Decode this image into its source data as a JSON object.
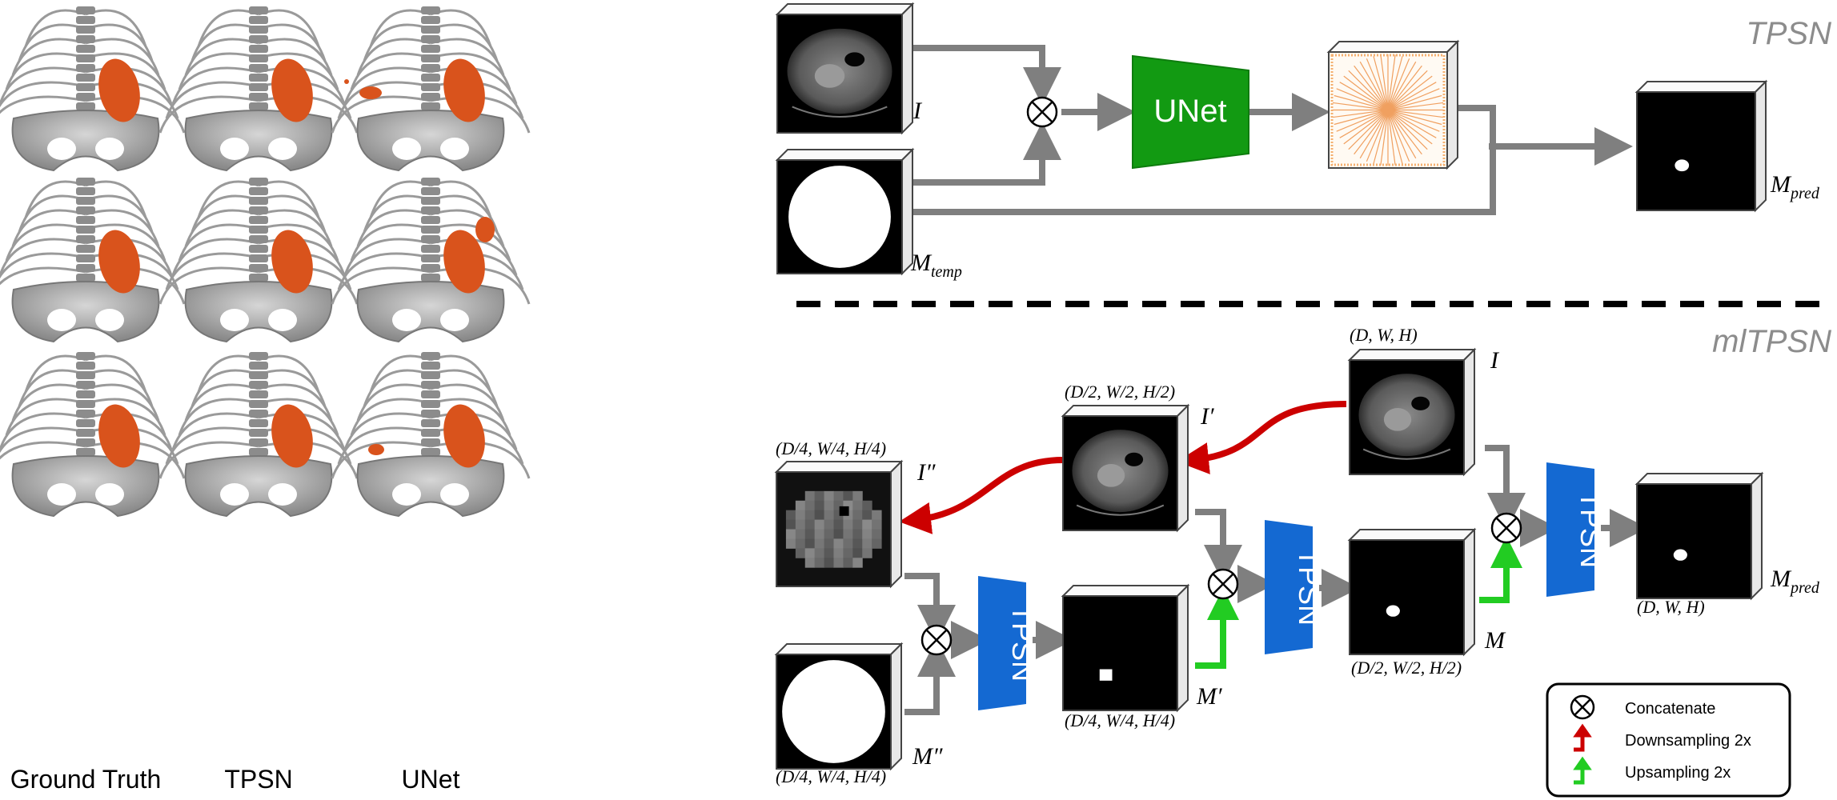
{
  "render_panel": {
    "column_labels": [
      "Ground Truth",
      "TPSN",
      "UNet"
    ]
  },
  "tpsn_section": {
    "title": "TPSN",
    "image_label": "I",
    "template_label": "M",
    "template_sub": "temp",
    "network_label": "UNet",
    "pred_label": "M",
    "pred_sub": "pred"
  },
  "mltpsn_section": {
    "title": "mlTPSN",
    "full_res_label": "I",
    "full_res_dims": "(D, W, H)",
    "half_res_label": "I′",
    "half_res_dims": "(D/2, W/2, H/2)",
    "quarter_res_label": "I″",
    "quarter_res_dims": "(D/4, W/4, H/4)",
    "template_label": "M″",
    "template_dims": "(D/4, W/4, H/4)",
    "tpsn_label": "TPSN",
    "m_prime_label": "M′",
    "m_prime_dims": "(D/4, W/4, H/4)",
    "m_label": "M",
    "m_dims": "(D/2, W/2, H/2)",
    "pred_label": "M",
    "pred_sub": "pred",
    "pred_dims": "(D, W, H)"
  },
  "legend": {
    "items": [
      {
        "symbol": "concat-icon",
        "label": "Concatenate"
      },
      {
        "symbol": "downsample-arrow-icon",
        "label": "Downsampling 2x",
        "color": "#cc0000"
      },
      {
        "symbol": "upsample-arrow-icon",
        "label": "Upsampling 2x",
        "color": "#22cc22"
      }
    ]
  },
  "colors": {
    "arrow_gray": "#7f7f7f",
    "unet_green": "#129a12",
    "tpsn_blue": "#1469d2",
    "down_red": "#cc0000",
    "up_green": "#22cc22",
    "organ_orange": "#d9531c",
    "title_gray": "#8c8c8c"
  }
}
